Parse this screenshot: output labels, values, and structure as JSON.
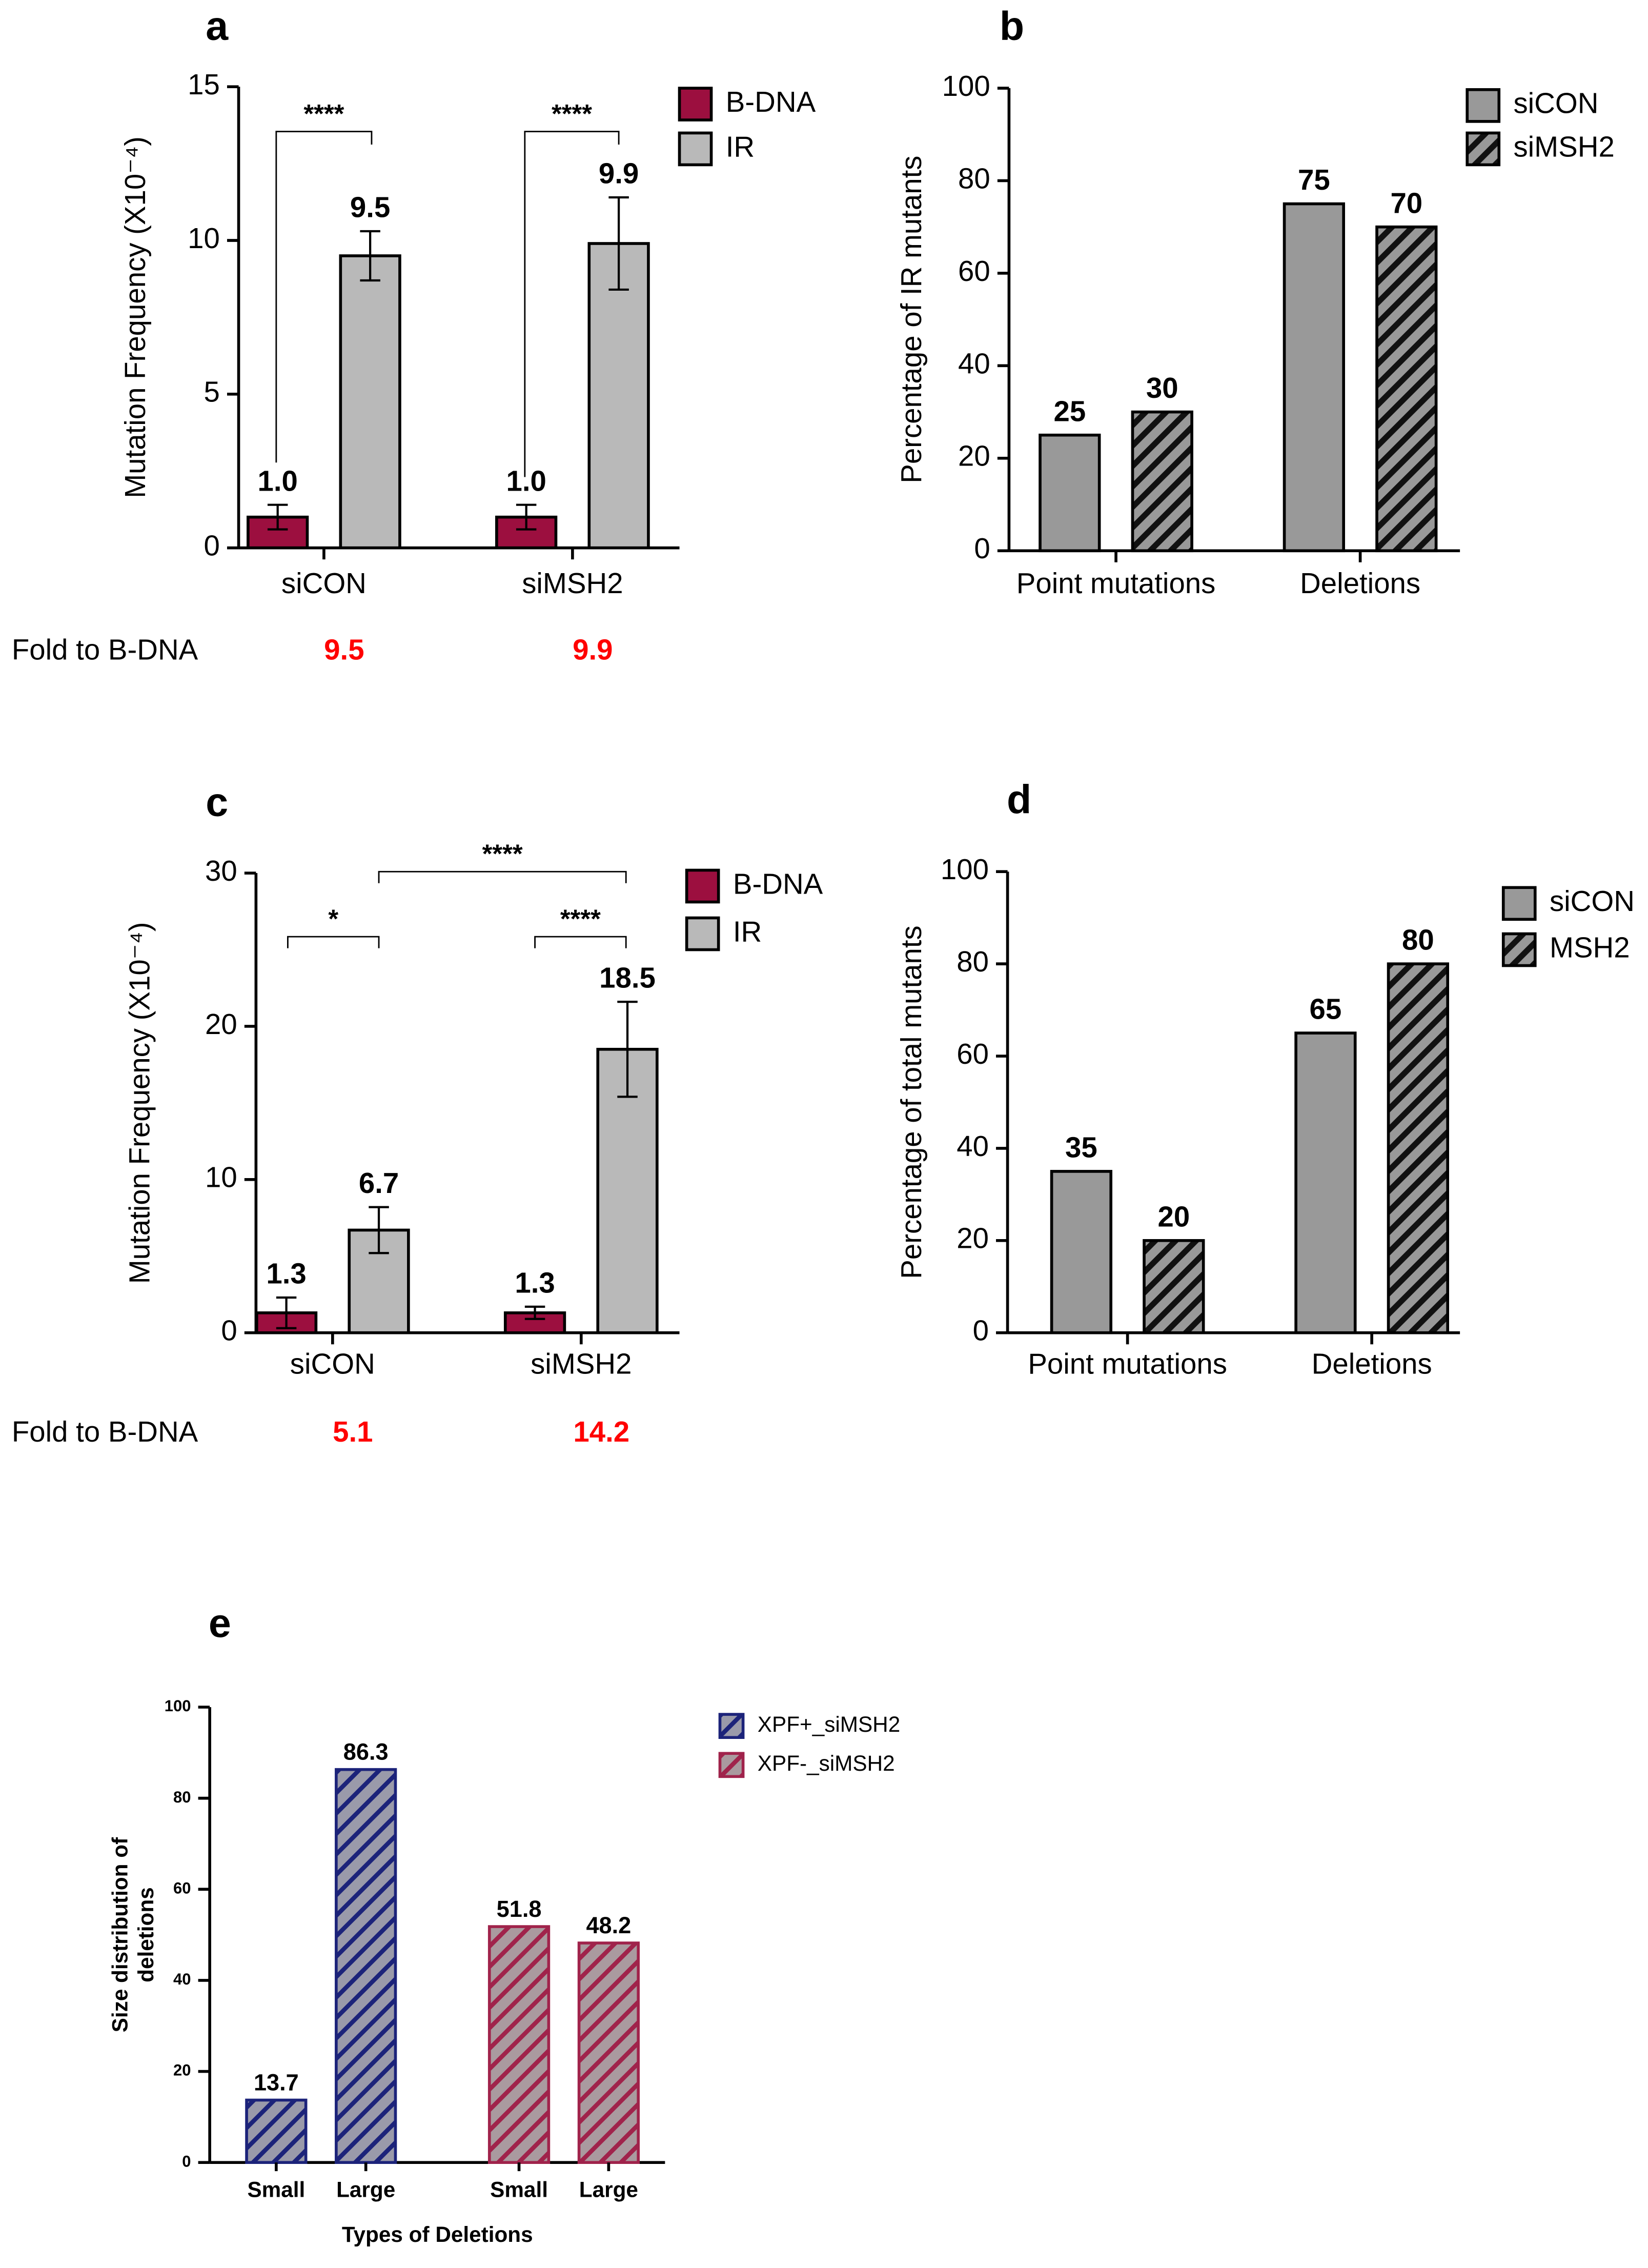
{
  "chart_data": [
    {
      "type": "bar",
      "panel": "a",
      "ylabel": "Mutation Frequency (X10⁻⁴)",
      "categories": [
        "siCON",
        "siMSH2"
      ],
      "series": [
        {
          "name": "B-DNA",
          "color": "#9c0f3f",
          "values": [
            1.0,
            1.0
          ],
          "value_labels": [
            "1.0",
            "1.0"
          ],
          "errors": [
            0.4,
            0.4
          ]
        },
        {
          "name": "IR",
          "color": "#b9b9b9",
          "values": [
            9.5,
            9.9
          ],
          "value_labels": [
            "9.5",
            "9.9"
          ],
          "errors": [
            0.8,
            1.5
          ]
        }
      ],
      "ylim": [
        0,
        15
      ],
      "yticks": [
        0,
        5,
        10,
        15
      ],
      "annotations": [
        "****",
        "****"
      ],
      "fold_label": "Fold to B-DNA",
      "fold_values": [
        "9.5",
        "9.9"
      ],
      "fold_color": "#ff0000"
    },
    {
      "type": "bar",
      "panel": "b",
      "ylabel": "Percentage of IR mutants",
      "categories": [
        "Point mutations",
        "Deletions"
      ],
      "series": [
        {
          "name": "siCON",
          "color": "#999999",
          "values": [
            25,
            75
          ]
        },
        {
          "name": "siMSH2",
          "color": "#999999",
          "hatch": "#111111",
          "values": [
            30,
            70
          ]
        }
      ],
      "ylim": [
        0,
        100
      ],
      "yticks": [
        0,
        20,
        40,
        60,
        80,
        100
      ]
    },
    {
      "type": "bar",
      "panel": "c",
      "ylabel": "Mutation Frequency (X10⁻⁴)",
      "categories": [
        "siCON",
        "siMSH2"
      ],
      "series": [
        {
          "name": "B-DNA",
          "color": "#9c0f3f",
          "values": [
            1.3,
            1.3
          ],
          "errors": [
            1.0,
            0.4
          ]
        },
        {
          "name": "IR",
          "color": "#b9b9b9",
          "values": [
            6.7,
            18.5
          ],
          "errors": [
            1.5,
            3.1
          ]
        }
      ],
      "ylim": [
        0,
        30
      ],
      "yticks": [
        0,
        10,
        20,
        30
      ],
      "annotations": [
        "*",
        "****",
        "****"
      ],
      "fold_label": "Fold to B-DNA",
      "fold_values": [
        "5.1",
        "14.2"
      ],
      "fold_color": "#ff0000"
    },
    {
      "type": "bar",
      "panel": "d",
      "ylabel": "Percentage of total mutants",
      "categories": [
        "Point mutations",
        "Deletions"
      ],
      "series": [
        {
          "name": "siCON",
          "color": "#999999",
          "values": [
            35,
            65
          ]
        },
        {
          "name": "MSH2",
          "color": "#999999",
          "hatch": "#111111",
          "values": [
            20,
            80
          ]
        }
      ],
      "ylim": [
        0,
        100
      ],
      "yticks": [
        0,
        20,
        40,
        60,
        80,
        100
      ]
    },
    {
      "type": "bar",
      "panel": "e",
      "ylabel": [
        "Size distribution of",
        "deletions"
      ],
      "xlabel": "Types of Deletions",
      "categories": [
        "Small",
        "Large"
      ],
      "series": [
        {
          "name": "XPF+_siMSH2",
          "color": "#9a9aaa",
          "hatch": "#1c237a",
          "values": [
            13.7,
            86.3
          ]
        },
        {
          "name": "XPF-_siMSH2",
          "color": "#aa9a9f",
          "hatch": "#a0234b",
          "values": [
            51.8,
            48.2
          ]
        }
      ],
      "ylim": [
        0,
        100
      ],
      "yticks": [
        0,
        20,
        40,
        60,
        80,
        100
      ]
    }
  ]
}
